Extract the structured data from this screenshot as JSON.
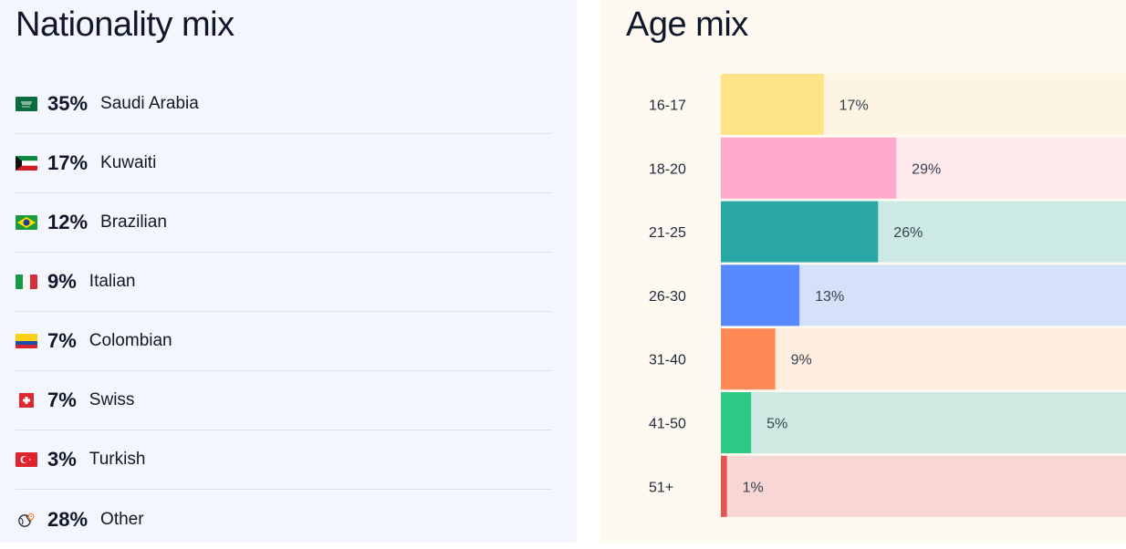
{
  "nationality": {
    "title": "Nationality mix",
    "items": [
      {
        "flag": "saudi-arabia-flag-icon",
        "pct": "35%",
        "name": "Saudi Arabia"
      },
      {
        "flag": "kuwait-flag-icon",
        "pct": "17%",
        "name": "Kuwaiti"
      },
      {
        "flag": "brazil-flag-icon",
        "pct": "12%",
        "name": "Brazilian"
      },
      {
        "flag": "italy-flag-icon",
        "pct": "9%",
        "name": "Italian"
      },
      {
        "flag": "colombia-flag-icon",
        "pct": "7%",
        "name": "Colombian"
      },
      {
        "flag": "switzerland-flag-icon",
        "pct": "7%",
        "name": "Swiss"
      },
      {
        "flag": "turkey-flag-icon",
        "pct": "3%",
        "name": "Turkish"
      },
      {
        "flag": "globe-pin-icon",
        "pct": "28%",
        "name": "Other"
      }
    ]
  },
  "age": {
    "title": "Age mix"
  },
  "chart_data": {
    "type": "bar",
    "orientation": "horizontal",
    "title": "Age mix",
    "categories": [
      "16-17",
      "18-20",
      "21-25",
      "26-30",
      "31-40",
      "41-50",
      "51+"
    ],
    "values": [
      17,
      29,
      26,
      13,
      9,
      5,
      1
    ],
    "value_labels": [
      "17%",
      "29%",
      "26%",
      "13%",
      "9%",
      "5%",
      "1%"
    ],
    "xlim": [
      0,
      67
    ],
    "bar_colors": [
      "#ffe387",
      "#ffaacd",
      "#2aa8a6",
      "#588aff",
      "#ff8a55",
      "#2ec985",
      "#e25553"
    ],
    "track_colors": [
      "#fdf4e3",
      "#ffe8ec",
      "#cceae3",
      "#d5e1f8",
      "#ffeddf",
      "#cde9e1",
      "#f8d6d3"
    ],
    "grid": false
  }
}
